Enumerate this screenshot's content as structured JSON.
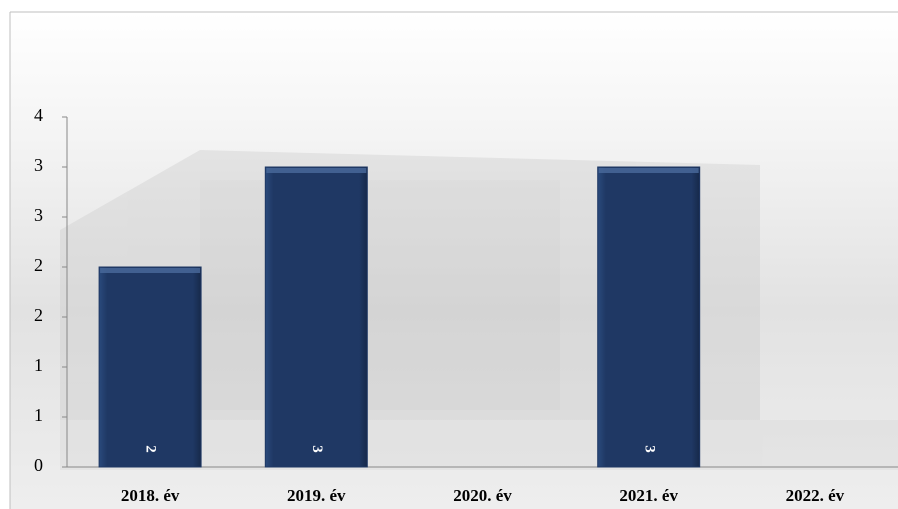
{
  "chart_data": {
    "type": "bar",
    "categories": [
      "2018. év",
      "2019. év",
      "2020. év",
      "2021. év",
      "2022. év"
    ],
    "values": [
      2,
      3,
      null,
      3,
      null
    ],
    "color": "#1f3864",
    "ylim": [
      0,
      3.5
    ],
    "yticks": [
      0,
      {
        "value": 0.5,
        "label": "1"
      },
      1,
      {
        "value": 1.5,
        "label": "2"
      },
      2,
      {
        "value": 2.5,
        "label": "3"
      },
      3,
      {
        "value": 3.5,
        "label": "4"
      }
    ]
  }
}
